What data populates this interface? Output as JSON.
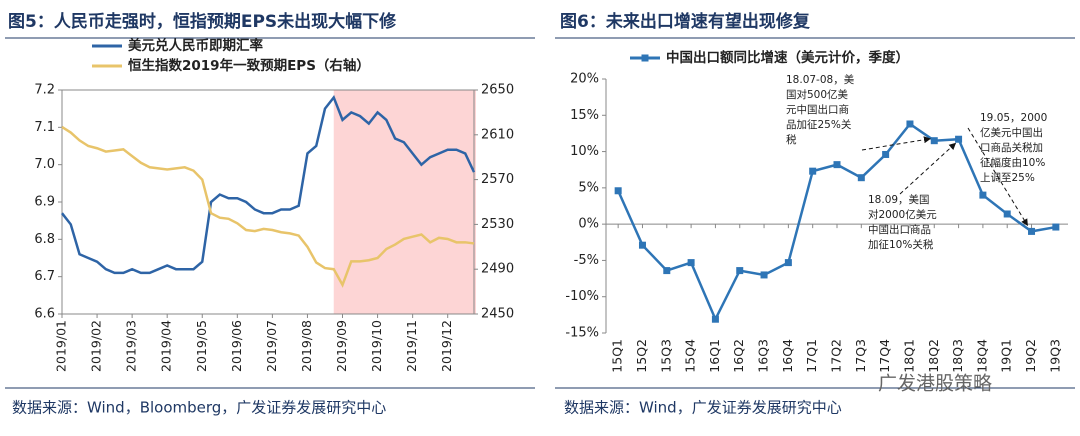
{
  "chart_data": [
    {
      "type": "line",
      "title": "图5：人民币走强时，恒指预期EPS未出现大幅下修",
      "source": "数据来源：Wind，Bloomberg，广发证券发展研究中心",
      "categories": [
        "2019/01",
        null,
        null,
        null,
        "2019/02",
        null,
        null,
        null,
        "2019/03",
        null,
        null,
        null,
        "2019/04",
        null,
        null,
        null,
        "2019/05",
        null,
        null,
        null,
        "2019/06",
        null,
        null,
        null,
        "2019/07",
        null,
        null,
        null,
        "2019/08",
        null,
        null,
        null,
        "2019/09",
        null,
        null,
        null,
        "2019/10",
        null,
        null,
        null,
        "2019/11",
        null,
        null,
        null,
        "2019/12",
        null,
        null,
        null
      ],
      "series": [
        {
          "name": "美元兑人民币即期汇率",
          "color": "#2e64a6",
          "values": [
            6.87,
            6.84,
            6.76,
            6.75,
            6.74,
            6.72,
            6.71,
            6.71,
            6.72,
            6.71,
            6.71,
            6.72,
            6.73,
            6.72,
            6.72,
            6.72,
            6.74,
            6.9,
            6.92,
            6.91,
            6.91,
            6.9,
            6.88,
            6.87,
            6.87,
            6.88,
            6.88,
            6.89,
            7.03,
            7.05,
            7.15,
            7.18,
            7.12,
            7.14,
            7.13,
            7.11,
            7.14,
            7.12,
            7.07,
            7.06,
            7.03,
            7.0,
            7.02,
            7.03,
            7.04,
            7.04,
            7.03,
            6.98
          ]
        },
        {
          "name": "恒生指数2019年一致预期EPS（右轴）",
          "color": "#e8c46a",
          "axis": "y2",
          "values": [
            2617,
            2612,
            2605,
            2600,
            2598,
            2595,
            2596,
            2597,
            2591,
            2585,
            2581,
            2580,
            2579,
            2580,
            2581,
            2578,
            2570,
            2540,
            2536,
            2535,
            2531,
            2525,
            2524,
            2526,
            2525,
            2523,
            2522,
            2520,
            2510,
            2496,
            2491,
            2490,
            2476,
            2497,
            2497,
            2498,
            2500,
            2508,
            2512,
            2517,
            2519,
            2521,
            2514,
            2518,
            2517,
            2514,
            2514,
            2513
          ]
        }
      ],
      "highlight": {
        "from": 31,
        "to": 47,
        "color": "#fdd5d5"
      },
      "ylim": [
        6.6,
        7.2
      ],
      "yticks": [
        6.6,
        6.7,
        6.8,
        6.9,
        {
          "value": 7,
          "label": "7.0"
        },
        7.1,
        7.2
      ],
      "y2lim": [
        2450,
        2650
      ],
      "y2ticks": [
        2450,
        2490,
        2530,
        2570,
        2610,
        2650
      ]
    },
    {
      "type": "line",
      "title": "图6：未来出口增速有望出现修复",
      "source": "数据来源：Wind，广发证券发展研究中心",
      "watermark": "广发港股策略",
      "categories": [
        "15Q1",
        "15Q2",
        "15Q3",
        "15Q4",
        "16Q1",
        "16Q2",
        "16Q3",
        "16Q4",
        "17Q1",
        "17Q2",
        "17Q3",
        "17Q4",
        "18Q1",
        "18Q2",
        "18Q3",
        "18Q4",
        "19Q1",
        "19Q2",
        "19Q3"
      ],
      "series": [
        {
          "name": "中国出口额同比增速（美元计价，季度）",
          "color": "#2e75b6",
          "marker": "square",
          "values": [
            4.6,
            -2.9,
            -6.4,
            -5.3,
            -13.1,
            -6.4,
            -7.0,
            -5.3,
            7.3,
            8.2,
            6.4,
            9.6,
            13.8,
            11.5,
            11.7,
            4.0,
            1.4,
            -1.0,
            -0.4
          ]
        }
      ],
      "ylim": [
        -15,
        20
      ],
      "yticks": [
        {
          "value": -15,
          "label": "-15%"
        },
        {
          "value": -10,
          "label": "-10%"
        },
        {
          "value": -5,
          "label": "-5%"
        },
        {
          "value": 0,
          "label": "0%"
        },
        {
          "value": 5,
          "label": "5%"
        },
        {
          "value": 10,
          "label": "10%"
        },
        {
          "value": 15,
          "label": "15%"
        },
        {
          "value": 20,
          "label": "20%"
        }
      ],
      "annotations": [
        {
          "lines": [
            "18.07-08，美",
            "国对500亿美",
            "元中国出口商",
            "品加征25%关",
            "税"
          ]
        },
        {
          "lines": [
            "18.09，美国",
            "对2000亿美元",
            "中国出口商品",
            "加征10%关税"
          ]
        },
        {
          "lines": [
            "19.05，2000",
            "亿美元中国出",
            "口商品关税加",
            "征幅度由10%",
            "上调至25%"
          ]
        }
      ]
    }
  ]
}
